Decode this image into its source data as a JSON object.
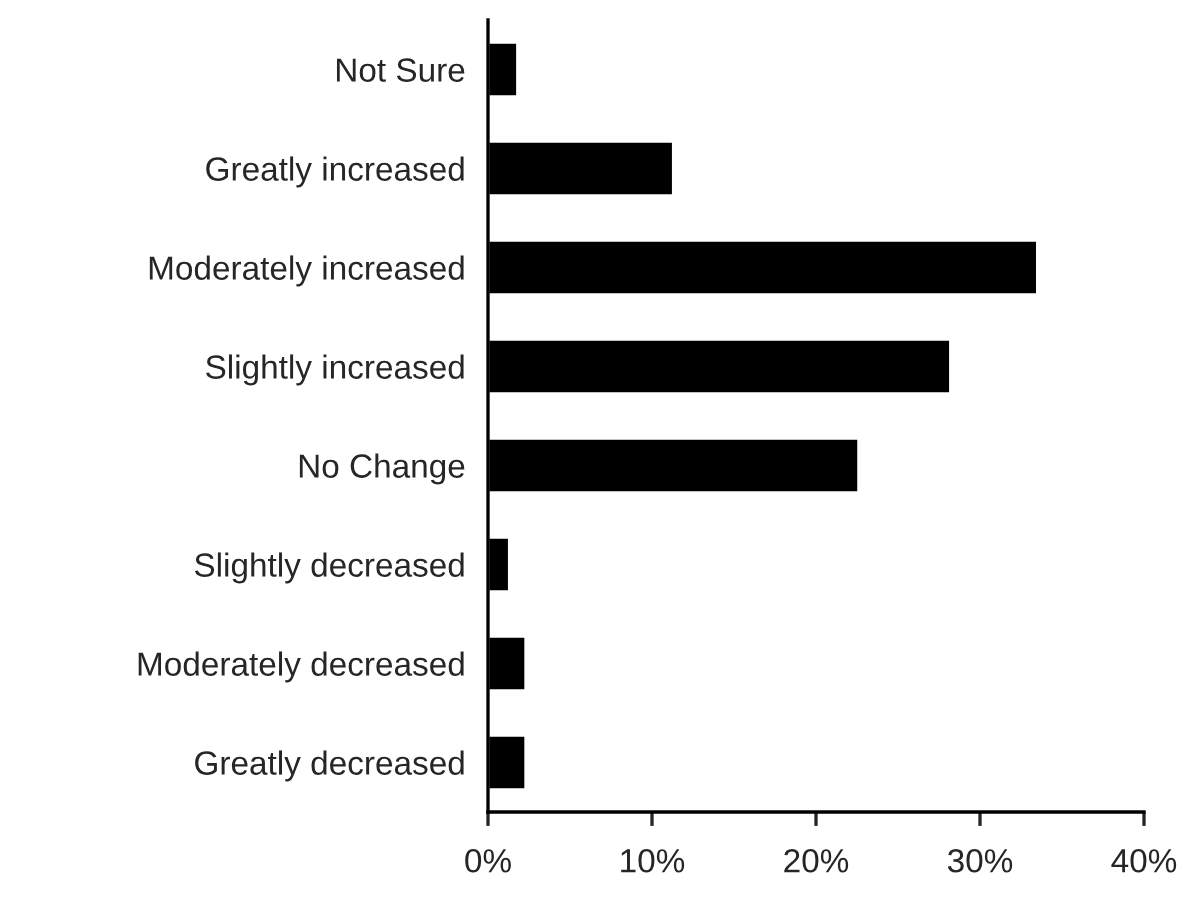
{
  "chart_data": {
    "type": "bar",
    "orientation": "horizontal",
    "categories": [
      "Not Sure",
      "Greatly increased",
      "Moderately increased",
      "Slightly increased",
      "No Change",
      "Slightly decreased",
      "Moderately decreased",
      "Greatly decreased"
    ],
    "values": [
      1.8,
      11.3,
      33.5,
      28.2,
      22.6,
      1.3,
      2.3,
      2.3
    ],
    "color": "#000000",
    "xlim": [
      0,
      40
    ],
    "xticks": [
      {
        "value": 0,
        "label": "0%"
      },
      {
        "value": 10,
        "label": "10%"
      },
      {
        "value": 20,
        "label": "20%"
      },
      {
        "value": 30,
        "label": "30%"
      },
      {
        "value": 40,
        "label": "40%"
      }
    ],
    "grid": false,
    "legend": false
  }
}
